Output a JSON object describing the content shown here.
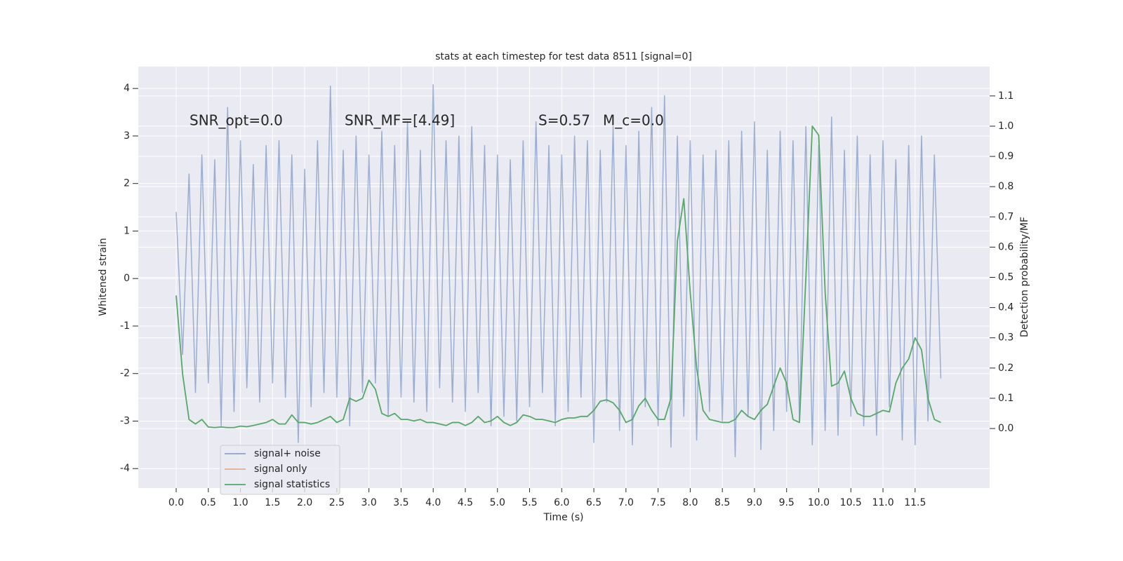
{
  "chart_data": {
    "type": "line",
    "title": "stats at each timestep for test data 8511 [signal=0]",
    "x_label": "Time (s)",
    "y_label": "Whitened strain",
    "y2_label": "Detection probability/MF",
    "annotations": [
      "SNR_opt=0.0",
      "SNR_MF=[4.49]",
      "S=0.57",
      "M_c=0.0"
    ],
    "xlim": [
      -0.59,
      12.66
    ],
    "ylim": [
      -4.41,
      4.46
    ],
    "y2lim": [
      -0.197,
      1.197
    ],
    "xticks": [
      {
        "value": 0,
        "label": "0.0"
      },
      0.5,
      {
        "value": 1,
        "label": "1.0"
      },
      1.5,
      {
        "value": 2,
        "label": "2.0"
      },
      2.5,
      {
        "value": 3,
        "label": "3.0"
      },
      3.5,
      {
        "value": 4,
        "label": "4.0"
      },
      4.5,
      {
        "value": 5,
        "label": "5.0"
      },
      5.5,
      {
        "value": 6,
        "label": "6.0"
      },
      6.5,
      {
        "value": 7,
        "label": "7.0"
      },
      7.5,
      {
        "value": 8,
        "label": "8.0"
      },
      8.5,
      {
        "value": 9,
        "label": "9.0"
      },
      9.5,
      {
        "value": 10,
        "label": "10.0"
      },
      10.5,
      {
        "value": 11,
        "label": "11.0"
      },
      11.5
    ],
    "yticks": [
      -4,
      -3,
      -2,
      -1,
      0,
      1,
      2,
      3,
      4
    ],
    "y2ticks": [
      {
        "value": 0,
        "label": "0.0"
      },
      0.1,
      0.2,
      0.3,
      0.4,
      0.5,
      0.6,
      0.7,
      0.8,
      0.9,
      {
        "value": 1,
        "label": "1.0"
      },
      1.1
    ],
    "grid": true,
    "legend": "lower left",
    "x": [
      0,
      0.1,
      0.2,
      0.3,
      0.4,
      0.5,
      0.6,
      0.7,
      0.8,
      0.9,
      1,
      1.1,
      1.2,
      1.3,
      1.4,
      1.5,
      1.6,
      1.7,
      1.8,
      1.9,
      2,
      2.1,
      2.2,
      2.3,
      2.4,
      2.5,
      2.6,
      2.7,
      2.8,
      2.9,
      3,
      3.1,
      3.2,
      3.3,
      3.4,
      3.5,
      3.6,
      3.7,
      3.8,
      3.9,
      4,
      4.1,
      4.2,
      4.3,
      4.4,
      4.5,
      4.6,
      4.7,
      4.8,
      4.9,
      5,
      5.1,
      5.2,
      5.3,
      5.4,
      5.5,
      5.6,
      5.7,
      5.8,
      5.9,
      6,
      6.1,
      6.2,
      6.3,
      6.4,
      6.5,
      6.6,
      6.7,
      6.8,
      6.9,
      7,
      7.1,
      7.2,
      7.3,
      7.4,
      7.5,
      7.6,
      7.7,
      7.8,
      7.9,
      8,
      8.1,
      8.2,
      8.3,
      8.4,
      8.5,
      8.6,
      8.7,
      8.8,
      8.9,
      9,
      9.1,
      9.2,
      9.3,
      9.4,
      9.5,
      9.6,
      9.7,
      9.8,
      9.9,
      10,
      10.1,
      10.2,
      10.3,
      10.4,
      10.5,
      10.6,
      10.7,
      10.8,
      10.9,
      11,
      11.1,
      11.2,
      11.3,
      11.4,
      11.5,
      11.6,
      11.7,
      11.8,
      11.9
    ],
    "series": [
      {
        "name": "signal+ noise",
        "color": "#4c72b0",
        "values": [
          1.4,
          -1.6,
          2.2,
          -2.4,
          2.6,
          -2.2,
          2.5,
          -3.1,
          3.6,
          -2.8,
          2.9,
          -2.3,
          2.4,
          -2.6,
          2.8,
          -2.2,
          2.9,
          -2.5,
          2.6,
          -3.45,
          2.3,
          -2.7,
          2.9,
          -2.4,
          4.05,
          -2.5,
          2.7,
          -3.1,
          3.0,
          -2.4,
          2.6,
          -2.2,
          3.1,
          -2.9,
          2.8,
          -2.5,
          3.3,
          -2.6,
          2.7,
          -2.8,
          4.08,
          -2.3,
          2.9,
          -2.6,
          3.0,
          -2.8,
          3.2,
          -2.4,
          2.8,
          -3.1,
          2.6,
          -2.9,
          2.5,
          -3.0,
          2.9,
          -2.7,
          3.3,
          -2.4,
          2.8,
          -3.1,
          2.6,
          -2.8,
          3.0,
          -2.5,
          2.9,
          -3.45,
          2.7,
          -2.6,
          3.2,
          -3.2,
          2.8,
          -3.5,
          3.1,
          -2.7,
          3.6,
          -3.1,
          3.85,
          -3.55,
          3.0,
          -2.9,
          2.9,
          -3.4,
          2.6,
          -2.8,
          2.7,
          -3.0,
          2.9,
          -3.75,
          3.1,
          -2.9,
          3.3,
          -3.6,
          2.7,
          -3.2,
          3.1,
          -2.8,
          2.9,
          -3.0,
          3.2,
          -3.5,
          2.8,
          -3.2,
          3.4,
          -3.3,
          2.7,
          -2.9,
          3.0,
          -3.1,
          2.6,
          -3.3,
          2.9,
          -2.7,
          2.5,
          -3.4,
          2.8,
          -3.5,
          3.0,
          -3.0,
          2.6,
          -2.1
        ]
      },
      {
        "name": "signal only",
        "color": "#dd8452"
      },
      {
        "name": "signal statistics",
        "color": "#55a868",
        "axis": "y2",
        "values": [
          0.44,
          0.18,
          0.03,
          0.015,
          0.03,
          0.005,
          0.003,
          0.005,
          0.003,
          0.003,
          0.008,
          0.006,
          0.01,
          0.015,
          0.02,
          0.03,
          0.015,
          0.015,
          0.045,
          0.02,
          0.02,
          0.015,
          0.02,
          0.03,
          0.04,
          0.02,
          0.03,
          0.1,
          0.09,
          0.1,
          0.16,
          0.13,
          0.05,
          0.04,
          0.05,
          0.03,
          0.03,
          0.025,
          0.03,
          0.02,
          0.02,
          0.015,
          0.01,
          0.02,
          0.02,
          0.01,
          0.02,
          0.04,
          0.02,
          0.025,
          0.04,
          0.02,
          0.01,
          0.02,
          0.045,
          0.04,
          0.03,
          0.03,
          0.025,
          0.02,
          0.03,
          0.035,
          0.035,
          0.04,
          0.04,
          0.06,
          0.09,
          0.095,
          0.085,
          0.06,
          0.02,
          0.03,
          0.075,
          0.1,
          0.06,
          0.03,
          0.03,
          0.1,
          0.62,
          0.76,
          0.45,
          0.2,
          0.06,
          0.03,
          0.025,
          0.02,
          0.02,
          0.03,
          0.06,
          0.04,
          0.03,
          0.06,
          0.08,
          0.14,
          0.2,
          0.15,
          0.03,
          0.02,
          0.5,
          1.0,
          0.97,
          0.45,
          0.14,
          0.15,
          0.19,
          0.1,
          0.05,
          0.04,
          0.04,
          0.05,
          0.06,
          0.055,
          0.15,
          0.2,
          0.23,
          0.3,
          0.26,
          0.1,
          0.03,
          0.02
        ]
      }
    ]
  }
}
